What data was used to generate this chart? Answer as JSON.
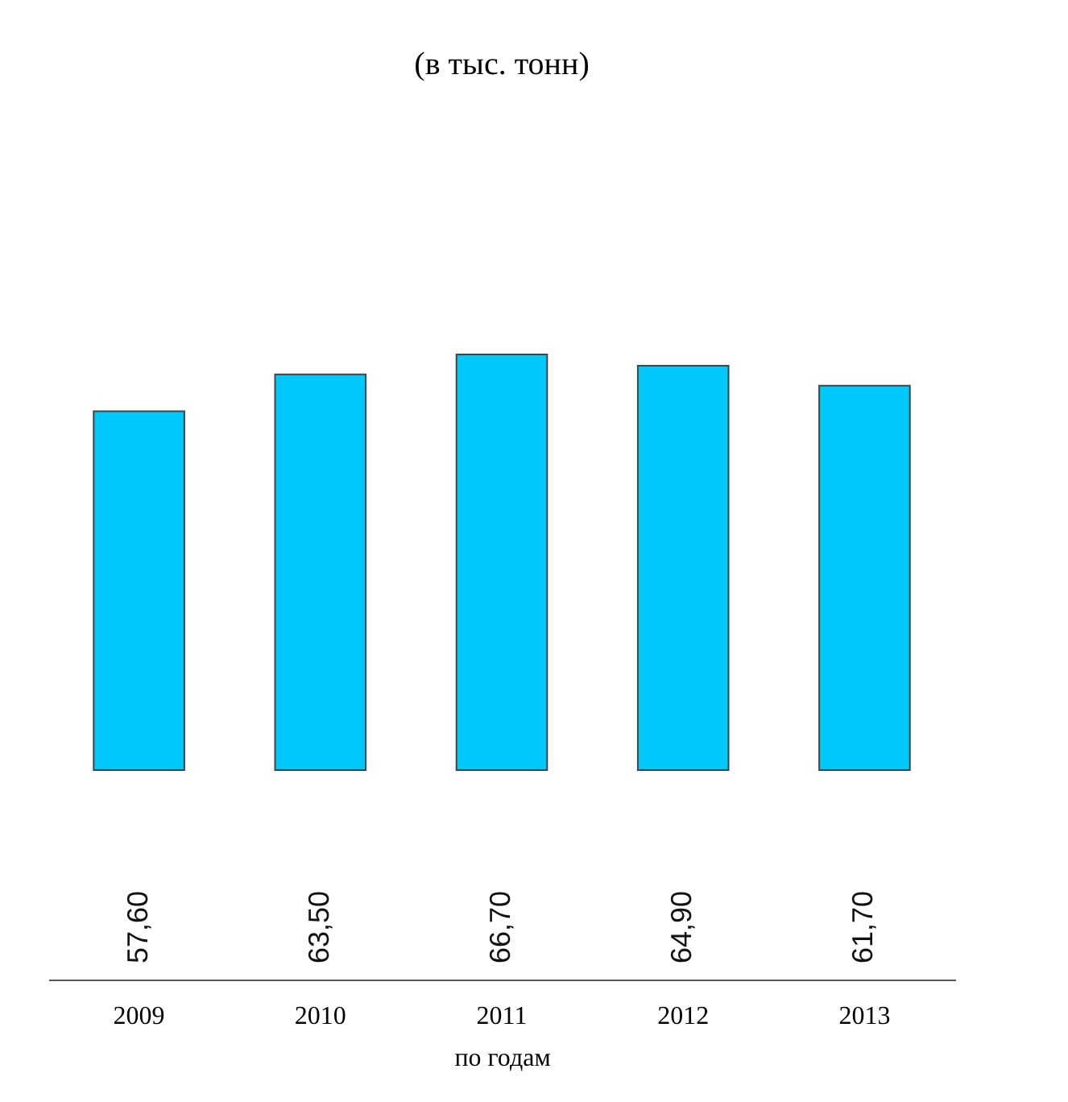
{
  "chart_data": {
    "type": "bar",
    "title": "(в тыс. тонн)",
    "xlabel": "по годам",
    "categories": [
      "2009",
      "2010",
      "2011",
      "2012",
      "2013"
    ],
    "series": [
      {
        "color": "#00c8fa",
        "values": [
          57.6,
          63.5,
          66.7,
          64.9,
          61.7
        ],
        "value_labels": [
          "57,60",
          "63,50",
          "66,70",
          "64,90",
          "61,70"
        ]
      }
    ],
    "tick_labels": "x",
    "grid": false
  }
}
